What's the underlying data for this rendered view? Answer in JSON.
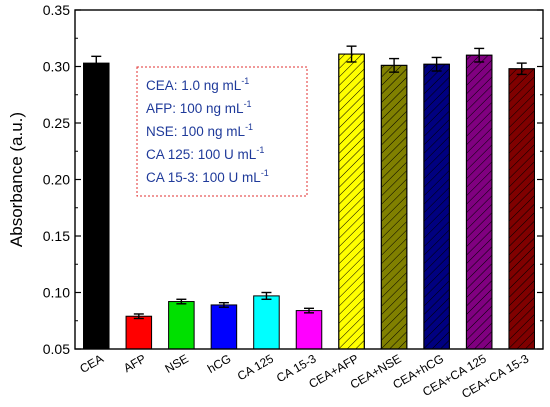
{
  "chart_data": {
    "type": "bar",
    "ylabel": "Absorbance (a.u.)",
    "xlabel": "",
    "ylim": [
      0.05,
      0.35
    ],
    "yticks": [
      "0.05",
      "0.10",
      "0.15",
      "0.20",
      "0.25",
      "0.30",
      "0.35"
    ],
    "grid": false,
    "categories": [
      "CEA",
      "AFP",
      "NSE",
      "hCG",
      "CA 125",
      "CA 15-3",
      "CEA+AFP",
      "CEA+NSE",
      "CEA+hCG",
      "CEA+CA 125",
      "CEA+CA 15-3"
    ],
    "values": [
      0.303,
      0.079,
      0.092,
      0.089,
      0.097,
      0.084,
      0.311,
      0.301,
      0.302,
      0.31,
      0.298
    ],
    "errors": [
      0.006,
      0.002,
      0.002,
      0.002,
      0.003,
      0.002,
      0.007,
      0.006,
      0.006,
      0.006,
      0.005
    ],
    "colors": [
      "#000000",
      "#ff0000",
      "#00e000",
      "#0000ff",
      "#00ffff",
      "#ff00ff",
      "#ffff00",
      "#808000",
      "#000080",
      "#800080",
      "#800000"
    ],
    "hatched": [
      false,
      false,
      false,
      false,
      false,
      false,
      true,
      true,
      true,
      true,
      true
    ],
    "annotation": {
      "lines": [
        {
          "prefix": "CEA: 1.0 ng mL",
          "sup": "-1"
        },
        {
          "prefix": "AFP: 100 ng mL",
          "sup": "-1"
        },
        {
          "prefix": "NSE: 100 ng mL",
          "sup": "-1"
        },
        {
          "prefix": "CA 125: 100 U mL",
          "sup": "-1"
        },
        {
          "prefix": "CA 15-3: 100 U mL",
          "sup": "-1"
        }
      ],
      "text_color": "#1f3a9a",
      "border_color": "#e03030"
    }
  }
}
